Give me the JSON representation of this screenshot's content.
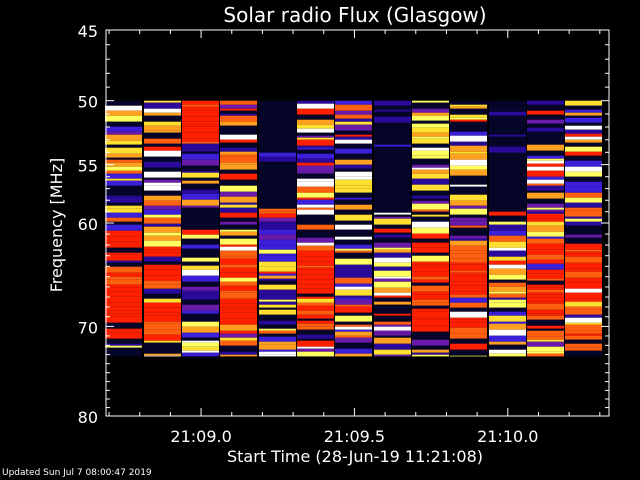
{
  "chart_data": {
    "type": "heatmap",
    "title": "Solar radio Flux (Glasgow)",
    "ylabel": "Frequency [MHz]",
    "xlabel": "Start Time (28-Jun-19 11:21:08)",
    "y_ticks": [
      45,
      50,
      55,
      60,
      70,
      80
    ],
    "ylim": [
      45,
      80
    ],
    "x_ticks": [
      "21:09.0",
      "21:09.5",
      "21:10.0"
    ],
    "x_tick_values": [
      0.0,
      0.5,
      1.0
    ],
    "xlim": [
      -0.31,
      1.33
    ],
    "data_freq_range": [
      50.0,
      73.2
    ],
    "columns": [
      {
        "t": -0.25,
        "kind": "stripe",
        "low_red": true
      },
      {
        "t": -0.125,
        "kind": "stripe",
        "low_red": true
      },
      {
        "t": 0.0,
        "kind": "red_top",
        "low_red": false
      },
      {
        "t": 0.125,
        "kind": "stripe",
        "low_red": true
      },
      {
        "t": 0.25,
        "kind": "dark_top",
        "low_red": false
      },
      {
        "t": 0.375,
        "kind": "stripe",
        "low_red": true
      },
      {
        "t": 0.5,
        "kind": "stripe",
        "low_red": false
      },
      {
        "t": 0.625,
        "kind": "dark_top",
        "low_red": false
      },
      {
        "t": 0.75,
        "kind": "stripe",
        "low_red": true
      },
      {
        "t": 0.875,
        "kind": "stripe",
        "low_red": true
      },
      {
        "t": 1.0,
        "kind": "dark_top",
        "low_red": false
      },
      {
        "t": 1.125,
        "kind": "stripe",
        "low_red": true
      },
      {
        "t": 1.25,
        "kind": "stripe",
        "low_red": true
      }
    ],
    "colormap": [
      "#05052a",
      "#2a0a9a",
      "#3b1fd9",
      "#6a1aa8",
      "#ff2000",
      "#ff6010",
      "#ffa020",
      "#ffe030",
      "#ffff60",
      "#ffffff"
    ]
  },
  "footer": "Updated Sun Jul  7 08:00:47 2019"
}
